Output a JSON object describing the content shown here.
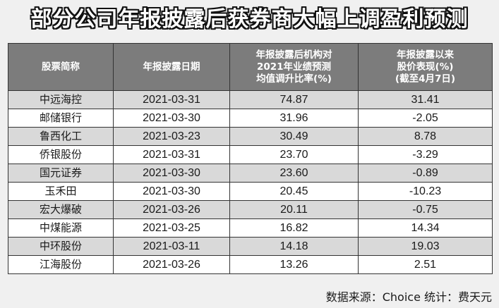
{
  "title": "部分公司年报披露后获券商大幅上调盈利预测",
  "table": {
    "headers": [
      "股票简称",
      "年报披露日期",
      "年报披露后机构对\n2021年业绩预测\n均值调升比率(%)",
      "年报披露以来\n股价表现(%)\n(截至4月7日)"
    ],
    "rows": [
      {
        "name": "中远海控",
        "date": "2021-03-31",
        "forecast_raise": "74.87",
        "price_change": "31.41"
      },
      {
        "name": "邮储银行",
        "date": "2021-03-30",
        "forecast_raise": "31.96",
        "price_change": "-2.05"
      },
      {
        "name": "鲁西化工",
        "date": "2021-03-23",
        "forecast_raise": "30.49",
        "price_change": "8.78"
      },
      {
        "name": "侨银股份",
        "date": "2021-03-31",
        "forecast_raise": "23.70",
        "price_change": "-3.29"
      },
      {
        "name": "国元证券",
        "date": "2021-03-30",
        "forecast_raise": "23.60",
        "price_change": "-0.89"
      },
      {
        "name": "玉禾田",
        "date": "2021-03-30",
        "forecast_raise": "20.45",
        "price_change": "-10.23"
      },
      {
        "name": "宏大爆破",
        "date": "2021-03-26",
        "forecast_raise": "20.11",
        "price_change": "-0.75"
      },
      {
        "name": "中煤能源",
        "date": "2021-03-25",
        "forecast_raise": "16.82",
        "price_change": "14.34"
      },
      {
        "name": "中环股份",
        "date": "2021-03-11",
        "forecast_raise": "14.18",
        "price_change": "19.03"
      },
      {
        "name": "江海股份",
        "date": "2021-03-26",
        "forecast_raise": "13.26",
        "price_change": "2.51"
      }
    ]
  },
  "source": "数据来源：Choice 统计：费天元",
  "colors": {
    "header_bg": "#7c7c7c",
    "row_shaded": "#d9d9d9",
    "row_plain": "#ffffff",
    "page_bg": "#f0f0f0"
  }
}
